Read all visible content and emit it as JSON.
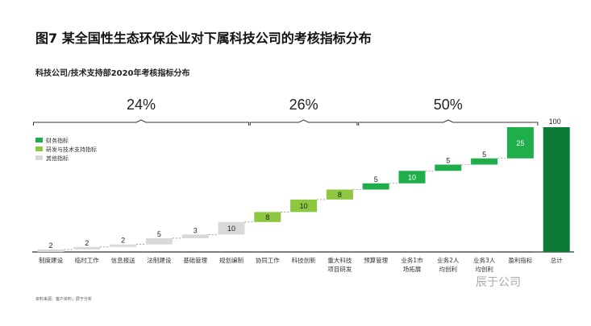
{
  "title": "图7  某全国性生态环保企业对下属科技公司的考核指标分布",
  "subtitle": "科技公司/技术支持部2020年考核指标分布",
  "source": "资料来源：客户资料；辰于分析",
  "watermark": "辰于公司",
  "colors": {
    "financial": "#1fae4b",
    "rnd": "#8dc63f",
    "other": "#d9d9d9",
    "total": "#0b7a35"
  },
  "chart_data": {
    "type": "waterfall",
    "legend": [
      {
        "key": "financial",
        "label": "财务指标"
      },
      {
        "key": "rnd",
        "label": "研发与技术支持指标"
      },
      {
        "key": "other",
        "label": "其他指标"
      }
    ],
    "categories": [
      [
        "制度建设"
      ],
      [
        "临时工作"
      ],
      [
        "信息报送"
      ],
      [
        "法制建设"
      ],
      [
        "基础管理"
      ],
      [
        "规划编制"
      ],
      [
        "协同工作"
      ],
      [
        "科技创新"
      ],
      [
        "重大科技",
        "项目研发"
      ],
      [
        "预算管理"
      ],
      [
        "业务1市",
        "场拓展"
      ],
      [
        "业务2人",
        "均创利"
      ],
      [
        "业务3人",
        "均创利"
      ],
      [
        "盈利指标"
      ],
      [
        "总计"
      ]
    ],
    "values": [
      2,
      2,
      2,
      5,
      3,
      10,
      8,
      10,
      8,
      5,
      10,
      5,
      5,
      25,
      100
    ],
    "groups": [
      "other",
      "other",
      "other",
      "other",
      "other",
      "other",
      "rnd",
      "rnd",
      "rnd",
      "financial",
      "financial",
      "financial",
      "financial",
      "financial",
      "total"
    ],
    "brackets": [
      {
        "label": "24%",
        "from": 0,
        "to": 5
      },
      {
        "label": "26%",
        "from": 6,
        "to": 8
      },
      {
        "label": "50%",
        "from": 9,
        "to": 13
      }
    ],
    "ylim": [
      0,
      100
    ]
  }
}
